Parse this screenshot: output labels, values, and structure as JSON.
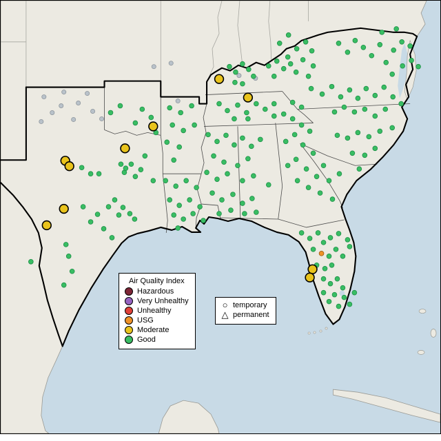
{
  "legend": {
    "title": "Air Quality Index",
    "items": [
      {
        "label": "Hazardous",
        "color": "#7d2636"
      },
      {
        "label": "Very Unhealthy",
        "color": "#9563c1"
      },
      {
        "label": "Unhealthy",
        "color": "#e04038"
      },
      {
        "label": "USG",
        "color": "#ef9227"
      },
      {
        "label": "Moderate",
        "color": "#e9c31c"
      },
      {
        "label": "Good",
        "color": "#39bd63"
      }
    ]
  },
  "symbol_legend": {
    "items": [
      {
        "label": "temporary",
        "shape": "circle"
      },
      {
        "label": "permanent",
        "shape": "triangle"
      }
    ]
  },
  "colors": {
    "water": "#c8dae6",
    "land": "#eceae2",
    "land_border": "#9a9a94",
    "state_line": "#4a4a4a",
    "faint_state_line": "#a6a6a0",
    "region_outline": "#000000",
    "no_data": "#b9c2ca",
    "good_stroke": "#1d8f47",
    "moderate_stroke": "#000000"
  },
  "marker_style": {
    "good_radius": 3.4,
    "no_data_radius": 3.1,
    "usg_radius": 3.4,
    "moderate_radius": 6.4
  },
  "stations": {
    "no_data": [
      [
        63,
        140
      ],
      [
        88,
        153
      ],
      [
        113,
        149
      ],
      [
        134,
        161
      ],
      [
        106,
        173
      ],
      [
        59,
        176
      ],
      [
        147,
        172
      ],
      [
        92,
        133
      ],
      [
        126,
        135
      ],
      [
        75,
        163
      ],
      [
        223,
        96
      ],
      [
        248,
        91
      ],
      [
        347,
        109
      ],
      [
        371,
        113
      ],
      [
        258,
        146
      ]
    ],
    "usg": [
      [
        467,
        368
      ]
    ],
    "moderate": [
      [
        318,
        114
      ],
      [
        360,
        141
      ],
      [
        222,
        183
      ],
      [
        181,
        215
      ],
      [
        94,
        233
      ],
      [
        100,
        241
      ],
      [
        92,
        303
      ],
      [
        67,
        327
      ],
      [
        454,
        391
      ],
      [
        450,
        403
      ]
    ],
    "good": [
      [
        333,
        96
      ],
      [
        342,
        104
      ],
      [
        352,
        92
      ],
      [
        361,
        100
      ],
      [
        368,
        110
      ],
      [
        341,
        119
      ],
      [
        352,
        121
      ],
      [
        390,
        95
      ],
      [
        402,
        88
      ],
      [
        412,
        99
      ],
      [
        398,
        110
      ],
      [
        422,
        92
      ],
      [
        430,
        104
      ],
      [
        418,
        82
      ],
      [
        406,
        62
      ],
      [
        419,
        50
      ],
      [
        431,
        70
      ],
      [
        444,
        60
      ],
      [
        453,
        73
      ],
      [
        440,
        86
      ],
      [
        455,
        95
      ],
      [
        448,
        110
      ],
      [
        492,
        62
      ],
      [
        505,
        75
      ],
      [
        516,
        58
      ],
      [
        528,
        68
      ],
      [
        540,
        80
      ],
      [
        552,
        64
      ],
      [
        561,
        90
      ],
      [
        572,
        72
      ],
      [
        584,
        60
      ],
      [
        596,
        66
      ],
      [
        570,
        107
      ],
      [
        585,
        95
      ],
      [
        598,
        87
      ],
      [
        555,
        46
      ],
      [
        576,
        41
      ],
      [
        608,
        96
      ],
      [
        452,
        128
      ],
      [
        468,
        136
      ],
      [
        482,
        125
      ],
      [
        495,
        140
      ],
      [
        508,
        130
      ],
      [
        520,
        142
      ],
      [
        532,
        128
      ],
      [
        545,
        138
      ],
      [
        558,
        126
      ],
      [
        571,
        140
      ],
      [
        583,
        150
      ],
      [
        560,
        158
      ],
      [
        545,
        168
      ],
      [
        530,
        158
      ],
      [
        515,
        162
      ],
      [
        500,
        155
      ],
      [
        486,
        162
      ],
      [
        570,
        185
      ],
      [
        552,
        190
      ],
      [
        536,
        198
      ],
      [
        520,
        192
      ],
      [
        505,
        200
      ],
      [
        490,
        196
      ],
      [
        545,
        215
      ],
      [
        530,
        225
      ],
      [
        512,
        222
      ],
      [
        522,
        245
      ],
      [
        318,
        150
      ],
      [
        330,
        160
      ],
      [
        345,
        152
      ],
      [
        358,
        163
      ],
      [
        372,
        150
      ],
      [
        385,
        158
      ],
      [
        398,
        150
      ],
      [
        425,
        148
      ],
      [
        438,
        155
      ],
      [
        360,
        172
      ],
      [
        340,
        172
      ],
      [
        398,
        168
      ],
      [
        412,
        165
      ],
      [
        425,
        172
      ],
      [
        438,
        181
      ],
      [
        450,
        190
      ],
      [
        428,
        195
      ],
      [
        415,
        205
      ],
      [
        440,
        210
      ],
      [
        455,
        222
      ],
      [
        430,
        231
      ],
      [
        418,
        240
      ],
      [
        445,
        245
      ],
      [
        460,
        256
      ],
      [
        432,
        262
      ],
      [
        448,
        272
      ],
      [
        465,
        280
      ],
      [
        478,
        262
      ],
      [
        470,
        240
      ],
      [
        493,
        252
      ],
      [
        483,
        289
      ],
      [
        302,
        195
      ],
      [
        315,
        205
      ],
      [
        328,
        196
      ],
      [
        340,
        210
      ],
      [
        352,
        200
      ],
      [
        365,
        212
      ],
      [
        378,
        202
      ],
      [
        310,
        226
      ],
      [
        325,
        235
      ],
      [
        345,
        240
      ],
      [
        360,
        230
      ],
      [
        300,
        250
      ],
      [
        315,
        260
      ],
      [
        330,
        252
      ],
      [
        352,
        262
      ],
      [
        368,
        255
      ],
      [
        308,
        280
      ],
      [
        322,
        290
      ],
      [
        338,
        282
      ],
      [
        352,
        295
      ],
      [
        366,
        288
      ],
      [
        318,
        310
      ],
      [
        335,
        305
      ],
      [
        355,
        310
      ],
      [
        372,
        308
      ],
      [
        390,
        268
      ],
      [
        240,
        262
      ],
      [
        255,
        270
      ],
      [
        270,
        262
      ],
      [
        285,
        272
      ],
      [
        246,
        290
      ],
      [
        260,
        298
      ],
      [
        275,
        290
      ],
      [
        290,
        300
      ],
      [
        252,
        312
      ],
      [
        266,
        318
      ],
      [
        280,
        310
      ],
      [
        295,
        320
      ],
      [
        258,
        331
      ],
      [
        246,
        156
      ],
      [
        262,
        163
      ],
      [
        278,
        153
      ],
      [
        250,
        181
      ],
      [
        266,
        189
      ],
      [
        282,
        181
      ],
      [
        242,
        206
      ],
      [
        260,
        213
      ],
      [
        252,
        232
      ],
      [
        160,
        163
      ],
      [
        174,
        153
      ],
      [
        206,
        158
      ],
      [
        219,
        170
      ],
      [
        196,
        178
      ],
      [
        226,
        192
      ],
      [
        118,
        243
      ],
      [
        131,
        252
      ],
      [
        143,
        252
      ],
      [
        120,
        300
      ],
      [
        131,
        322
      ],
      [
        141,
        311
      ],
      [
        157,
        300
      ],
      [
        95,
        355
      ],
      [
        99,
        372
      ],
      [
        104,
        394
      ],
      [
        92,
        414
      ],
      [
        44,
        380
      ],
      [
        166,
        290
      ],
      [
        178,
        301
      ],
      [
        188,
        310
      ],
      [
        195,
        318
      ],
      [
        172,
        312
      ],
      [
        180,
        250
      ],
      [
        204,
        246
      ],
      [
        210,
        226
      ],
      [
        196,
        256
      ],
      [
        175,
        238
      ],
      [
        182,
        244
      ],
      [
        190,
        238
      ],
      [
        150,
        332
      ],
      [
        162,
        345
      ],
      [
        222,
        262
      ],
      [
        438,
        338
      ],
      [
        450,
        346
      ],
      [
        462,
        338
      ],
      [
        470,
        352
      ],
      [
        480,
        345
      ],
      [
        492,
        339
      ],
      [
        455,
        362
      ],
      [
        478,
        372
      ],
      [
        488,
        362
      ],
      [
        498,
        372
      ],
      [
        508,
        358
      ],
      [
        460,
        385
      ],
      [
        472,
        390
      ],
      [
        482,
        385
      ],
      [
        470,
        405
      ],
      [
        480,
        412
      ],
      [
        490,
        405
      ],
      [
        498,
        418
      ],
      [
        486,
        428
      ],
      [
        478,
        438
      ],
      [
        492,
        445
      ],
      [
        500,
        432
      ],
      [
        508,
        442
      ],
      [
        515,
        425
      ],
      [
        470,
        425
      ],
      [
        505,
        348
      ]
    ]
  }
}
